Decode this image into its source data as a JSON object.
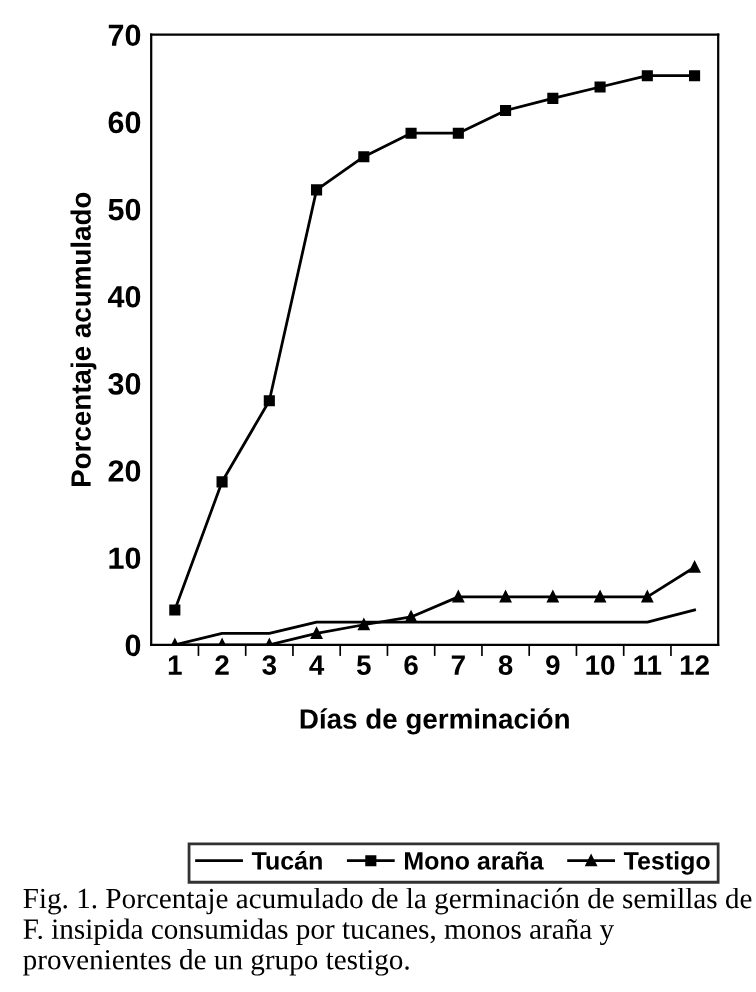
{
  "chart_data": {
    "type": "line",
    "xlabel": "Días de germinación",
    "ylabel": "Porcentaje acumulado",
    "categories": [
      "1",
      "2",
      "3",
      "4",
      "5",
      "6",
      "7",
      "8",
      "9",
      "10",
      "11",
      "12"
    ],
    "series": [
      {
        "name": "Tucán",
        "color": "#000000",
        "marker": "none",
        "values": [
          0,
          1.3,
          1.3,
          2.6,
          2.6,
          2.6,
          2.6,
          2.6,
          2.6,
          2.6,
          2.6,
          4
        ]
      },
      {
        "name": "Mono araña",
        "color": "#000000",
        "marker": "square",
        "values": [
          4,
          18.7,
          28,
          52.2,
          56,
          58.7,
          58.7,
          61.3,
          62.7,
          64,
          65.3,
          65.3
        ]
      },
      {
        "name": "Testigo",
        "color": "#000000",
        "marker": "triangle",
        "values": [
          0,
          0,
          0,
          1.3,
          2.3,
          3.2,
          5.5,
          5.5,
          5.5,
          5.5,
          5.5,
          8.9
        ]
      }
    ],
    "ylim": [
      0,
      70
    ],
    "yticks": [
      0,
      10,
      20,
      30,
      40,
      50,
      60,
      70
    ],
    "grid": false,
    "legend": "bottom",
    "line_style": "solid",
    "annotations": [
      "Fig. 1. Porcentaje acumulado de la germinación de semillas de F. insipida consumidas por tucanes, monos araña y provenientes de un grupo testigo."
    ]
  }
}
